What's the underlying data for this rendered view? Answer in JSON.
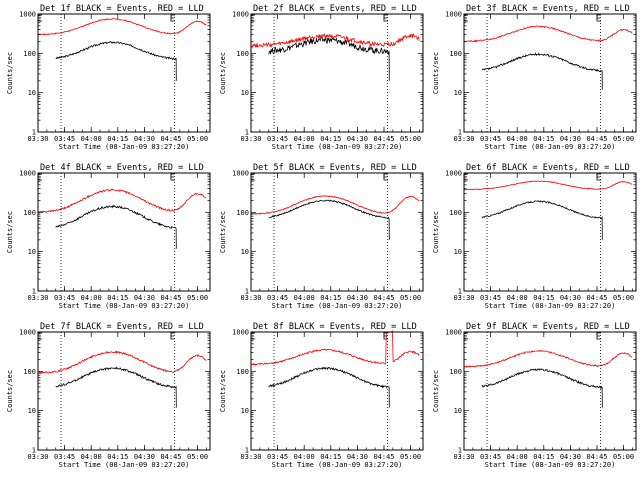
{
  "chart_data": [
    {
      "type": "line",
      "title": "Det 1f BLACK = Events, RED = LLD",
      "xlabel": "Start Time (08-Jan-09 03:27:20)",
      "ylabel": "Counts/sec",
      "yscale": "log",
      "ylim": [
        1,
        1000
      ],
      "xlim": [
        "03:30",
        "05:07"
      ],
      "x_ticks": [
        "03:30",
        "03:45",
        "04:00",
        "04:15",
        "04:30",
        "04:45",
        "05:00"
      ],
      "y_ticks": [
        "1",
        "10",
        "100",
        "1000"
      ],
      "vlines": [
        "03:43",
        "04:47"
      ],
      "markers": [
        "03:30",
        "04:45"
      ],
      "series": [
        {
          "color": "#000000",
          "start": "03:40",
          "end": "04:48",
          "base": 70,
          "peak": 190,
          "peak_time": "04:12",
          "noise": 0.05,
          "end_drop": 20
        },
        {
          "color": "#ff0000",
          "start": "03:30",
          "end": "05:05",
          "base": 300,
          "peak": 750,
          "peak_time": "04:12",
          "bump": 650,
          "bump_time": "05:00",
          "noise": 0.03
        }
      ]
    },
    {
      "type": "line",
      "title": "Det 2f BLACK = Events, RED = LLD",
      "xlabel": "Start Time (08-Jan-09 03:27:20)",
      "ylabel": "Counts/sec",
      "yscale": "log",
      "ylim": [
        1,
        1000
      ],
      "xlim": [
        "03:30",
        "05:07"
      ],
      "x_ticks": [
        "03:30",
        "03:45",
        "04:00",
        "04:15",
        "04:30",
        "04:45",
        "05:00"
      ],
      "y_ticks": [
        "1",
        "10",
        "100",
        "1000"
      ],
      "vlines": [
        "03:43",
        "04:47"
      ],
      "markers": [
        "03:30",
        "04:45"
      ],
      "series": [
        {
          "color": "#000000",
          "start": "03:40",
          "end": "04:48",
          "base": 110,
          "peak": 220,
          "peak_time": "04:12",
          "noise": 0.18,
          "end_drop": 20
        },
        {
          "color": "#ff0000",
          "start": "03:30",
          "end": "05:05",
          "base": 160,
          "peak": 280,
          "peak_time": "04:12",
          "bump": 280,
          "bump_time": "05:00",
          "noise": 0.12
        }
      ]
    },
    {
      "type": "line",
      "title": "Det 3f BLACK = Events, RED = LLD",
      "xlabel": "Start Time (08-Jan-09 03:27:20)",
      "ylabel": "Counts/sec",
      "yscale": "log",
      "ylim": [
        1,
        1000
      ],
      "xlim": [
        "03:30",
        "05:07"
      ],
      "x_ticks": [
        "03:30",
        "03:45",
        "04:00",
        "04:15",
        "04:30",
        "04:45",
        "05:00"
      ],
      "y_ticks": [
        "1",
        "10",
        "100",
        "1000"
      ],
      "vlines": [
        "03:43",
        "04:47"
      ],
      "markers": [
        "03:30",
        "04:45"
      ],
      "series": [
        {
          "color": "#000000",
          "start": "03:40",
          "end": "04:48",
          "base": 35,
          "peak": 95,
          "peak_time": "04:12",
          "noise": 0.06,
          "end_drop": 12
        },
        {
          "color": "#ff0000",
          "start": "03:30",
          "end": "05:05",
          "base": 200,
          "peak": 480,
          "peak_time": "04:12",
          "bump": 400,
          "bump_time": "05:00",
          "noise": 0.04
        }
      ]
    },
    {
      "type": "line",
      "title": "Det 4f BLACK = Events, RED = LLD",
      "xlabel": "Start Time (08-Jan-09 03:27:20)",
      "ylabel": "Counts/sec",
      "yscale": "log",
      "ylim": [
        1,
        1000
      ],
      "xlim": [
        "03:30",
        "05:07"
      ],
      "x_ticks": [
        "03:30",
        "03:45",
        "04:00",
        "04:15",
        "04:30",
        "04:45",
        "05:00"
      ],
      "y_ticks": [
        "1",
        "10",
        "100",
        "1000"
      ],
      "vlines": [
        "03:43",
        "04:47"
      ],
      "markers": [
        "03:30",
        "04:45"
      ],
      "series": [
        {
          "color": "#000000",
          "start": "03:40",
          "end": "04:48",
          "base": 38,
          "peak": 140,
          "peak_time": "04:12",
          "noise": 0.06,
          "end_drop": 12
        },
        {
          "color": "#ff0000",
          "start": "03:30",
          "end": "05:05",
          "base": 100,
          "peak": 370,
          "peak_time": "04:12",
          "bump": 300,
          "bump_time": "05:00",
          "noise": 0.05
        }
      ]
    },
    {
      "type": "line",
      "title": "Det 5f BLACK = Events, RED = LLD",
      "xlabel": "Start Time (08-Jan-09 03:27:20)",
      "ylabel": "Counts/sec",
      "yscale": "log",
      "ylim": [
        1,
        1000
      ],
      "xlim": [
        "03:30",
        "05:07"
      ],
      "x_ticks": [
        "03:30",
        "03:45",
        "04:00",
        "04:15",
        "04:30",
        "04:45",
        "05:00"
      ],
      "y_ticks": [
        "1",
        "10",
        "100",
        "1000"
      ],
      "vlines": [
        "03:43",
        "04:47"
      ],
      "markers": [
        "03:30",
        "04:45"
      ],
      "series": [
        {
          "color": "#000000",
          "start": "03:40",
          "end": "04:48",
          "base": 70,
          "peak": 200,
          "peak_time": "04:12",
          "noise": 0.04,
          "end_drop": 20
        },
        {
          "color": "#ff0000",
          "start": "03:30",
          "end": "05:05",
          "base": 90,
          "peak": 260,
          "peak_time": "04:12",
          "bump": 250,
          "bump_time": "05:00",
          "noise": 0.03
        }
      ]
    },
    {
      "type": "line",
      "title": "Det 6f BLACK = Events, RED = LLD",
      "xlabel": "Start Time (08-Jan-09 03:27:20)",
      "ylabel": "Counts/sec",
      "yscale": "log",
      "ylim": [
        1,
        1000
      ],
      "xlim": [
        "03:30",
        "05:07"
      ],
      "x_ticks": [
        "03:30",
        "03:45",
        "04:00",
        "04:15",
        "04:30",
        "04:45",
        "05:00"
      ],
      "y_ticks": [
        "1",
        "10",
        "100",
        "1000"
      ],
      "vlines": [
        "03:43",
        "04:47"
      ],
      "markers": [
        "03:30",
        "04:45"
      ],
      "series": [
        {
          "color": "#000000",
          "start": "03:40",
          "end": "04:48",
          "base": 70,
          "peak": 190,
          "peak_time": "04:12",
          "noise": 0.04,
          "end_drop": 20
        },
        {
          "color": "#ff0000",
          "start": "03:30",
          "end": "05:05",
          "base": 380,
          "peak": 620,
          "peak_time": "04:12",
          "bump": 600,
          "bump_time": "05:00",
          "noise": 0.02
        }
      ]
    },
    {
      "type": "line",
      "title": "Det 7f BLACK = Events, RED = LLD",
      "xlabel": "Start Time (08-Jan-09 03:27:20)",
      "ylabel": "Counts/sec",
      "yscale": "log",
      "ylim": [
        1,
        1000
      ],
      "xlim": [
        "03:30",
        "05:07"
      ],
      "x_ticks": [
        "03:30",
        "03:45",
        "04:00",
        "04:15",
        "04:30",
        "04:45",
        "05:00"
      ],
      "y_ticks": [
        "1",
        "10",
        "100",
        "1000"
      ],
      "vlines": [
        "03:43",
        "04:47"
      ],
      "markers": [
        "03:30",
        "04:45"
      ],
      "series": [
        {
          "color": "#000000",
          "start": "03:40",
          "end": "04:48",
          "base": 38,
          "peak": 120,
          "peak_time": "04:12",
          "noise": 0.06,
          "end_drop": 12
        },
        {
          "color": "#ff0000",
          "start": "03:30",
          "end": "05:05",
          "base": 90,
          "peak": 310,
          "peak_time": "04:12",
          "bump": 250,
          "bump_time": "05:00",
          "noise": 0.05
        }
      ]
    },
    {
      "type": "line",
      "title": "Det 8f BLACK = Events, RED = LLD",
      "xlabel": "Start Time (08-Jan-09 03:27:20)",
      "ylabel": "Counts/sec",
      "yscale": "log",
      "ylim": [
        1,
        1000
      ],
      "xlim": [
        "03:30",
        "05:07"
      ],
      "x_ticks": [
        "03:30",
        "03:45",
        "04:00",
        "04:15",
        "04:30",
        "04:45",
        "05:00"
      ],
      "y_ticks": [
        "1",
        "10",
        "100",
        "1000"
      ],
      "vlines": [
        "03:43",
        "04:47"
      ],
      "markers": [
        "03:30",
        "04:45"
      ],
      "series": [
        {
          "color": "#000000",
          "start": "03:40",
          "end": "04:48",
          "base": 38,
          "peak": 120,
          "peak_time": "04:12",
          "noise": 0.06,
          "end_drop": 12
        },
        {
          "color": "#ff0000",
          "start": "03:30",
          "end": "05:05",
          "base": 150,
          "peak": 350,
          "peak_time": "04:12",
          "bump": 320,
          "bump_time": "05:00",
          "noise": 0.05,
          "spike_start": "04:46",
          "spike_end": "04:50",
          "spike_value": 1000
        }
      ]
    },
    {
      "type": "line",
      "title": "Det 9f BLACK = Events, RED = LLD",
      "xlabel": "Start Time (08-Jan-09 03:27:20)",
      "ylabel": "Counts/sec",
      "yscale": "log",
      "ylim": [
        1,
        1000
      ],
      "xlim": [
        "03:30",
        "05:07"
      ],
      "x_ticks": [
        "03:30",
        "03:45",
        "04:00",
        "04:15",
        "04:30",
        "04:45",
        "05:00"
      ],
      "y_ticks": [
        "1",
        "10",
        "100",
        "1000"
      ],
      "vlines": [
        "03:43",
        "04:47"
      ],
      "markers": [
        "03:30",
        "04:45"
      ],
      "series": [
        {
          "color": "#000000",
          "start": "03:40",
          "end": "04:48",
          "base": 38,
          "peak": 110,
          "peak_time": "04:12",
          "noise": 0.06,
          "end_drop": 12
        },
        {
          "color": "#ff0000",
          "start": "03:30",
          "end": "05:05",
          "base": 130,
          "peak": 330,
          "peak_time": "04:12",
          "bump": 290,
          "bump_time": "05:00",
          "noise": 0.04
        }
      ]
    }
  ]
}
